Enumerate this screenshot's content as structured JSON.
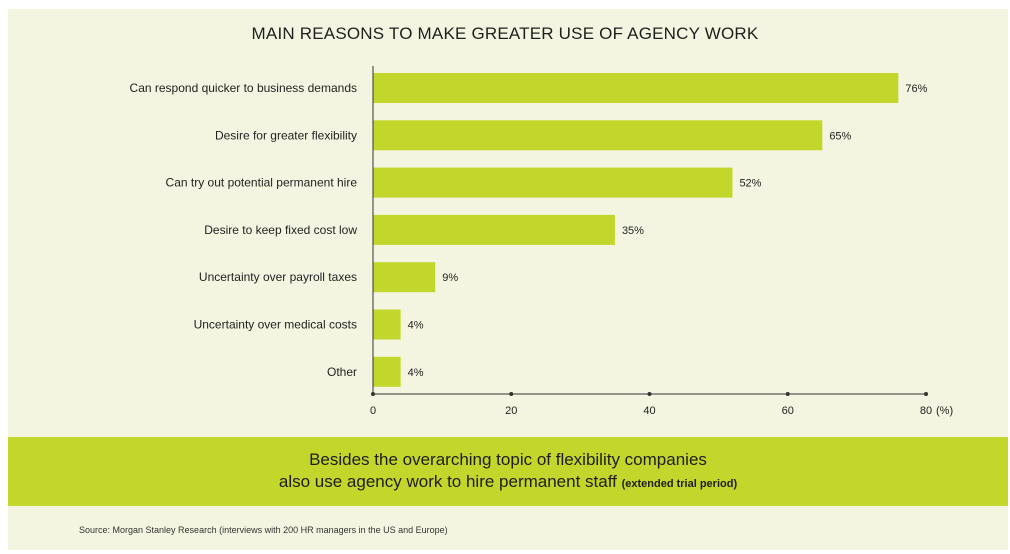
{
  "colors": {
    "panel": "#f3f5e1",
    "bar": "#c3d62b",
    "banner": "#c3d62b",
    "axis": "#333333"
  },
  "chart_data": {
    "type": "bar",
    "orientation": "horizontal",
    "title": "MAIN REASONS TO MAKE GREATER USE OF AGENCY WORK",
    "categories": [
      "Can respond quicker to business demands",
      "Desire for greater flexibility",
      "Can try out potential permanent hire",
      "Desire to keep fixed cost low",
      "Uncertainty over payroll taxes",
      "Uncertainty over medical costs",
      "Other"
    ],
    "values": [
      76,
      65,
      52,
      35,
      9,
      4,
      4
    ],
    "value_labels": [
      "76%",
      "65%",
      "52%",
      "35%",
      "9%",
      "4%",
      "4%"
    ],
    "xlim": [
      0,
      80
    ],
    "xticks": [
      0,
      20,
      40,
      60,
      80
    ],
    "x_tick_labels": [
      "0",
      "20",
      "40",
      "60",
      "80"
    ],
    "x_unit": "(%)",
    "grid": false
  },
  "banner": {
    "line1": "Besides the overarching topic of flexibility companies",
    "line2": "also use agency work to hire permanent staff",
    "line2_note": "(extended trial period)"
  },
  "source": "Source: Morgan Stanley Research (interviews with 200 HR managers in the US and Europe)"
}
